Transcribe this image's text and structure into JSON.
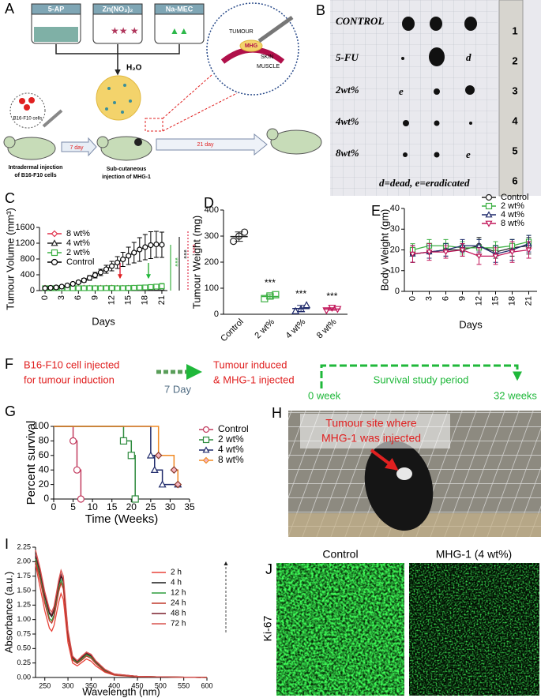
{
  "panel_labels": [
    "A",
    "B",
    "C",
    "D",
    "E",
    "F",
    "G",
    "H",
    "I",
    "J"
  ],
  "schematic": {
    "reagents": [
      "5-AP",
      "Zn(NO₃)₂",
      "Na-MEC"
    ],
    "solvent": "H₂O",
    "inset": [
      "TUMOUR",
      "MHG",
      "SKIN",
      "MUSCLE"
    ],
    "cells": "B16-F10 cells",
    "steps": [
      "7 day",
      "21 day"
    ],
    "captions": [
      [
        "Intradermal injection",
        "of B16-F10 cells"
      ],
      [
        "Sub-cutaneous",
        "injection of MHG-1"
      ]
    ]
  },
  "photo_b": {
    "rows": [
      "CONTROL",
      "5-FU",
      "2wt%",
      "4wt%",
      "8wt%"
    ],
    "letters": [
      "d",
      "e",
      "e"
    ],
    "caption": "d=dead, e=eradicated",
    "ruler_labels": [
      "1",
      "2",
      "3",
      "4",
      "5",
      "6"
    ]
  },
  "timeline": {
    "start": [
      "B16-F10 cell injected",
      "for tumour induction"
    ],
    "gap": "7 Day",
    "treatment": [
      "Tumour induced",
      "& MHG-1 injected"
    ],
    "begin": "0 week",
    "period": "Survival study period",
    "end": "32 weeks"
  },
  "photo_h": {
    "annotation": [
      "Tumour site where",
      "MHG-1 was injected"
    ]
  },
  "microscopy": {
    "titles": [
      "Control",
      "MHG-1 (4 wt%)"
    ],
    "stain": "Ki-67"
  },
  "chart_data": [
    {
      "type": "line",
      "ylabel": "Tumour Volume (mm³)",
      "xlabel": "Days",
      "x": [
        0,
        1,
        2,
        3,
        4,
        5,
        6,
        7,
        8,
        9,
        10,
        11,
        12,
        13,
        14,
        15,
        16,
        17,
        18,
        19,
        20,
        21
      ],
      "xlim": [
        -1,
        22
      ],
      "xticks": [
        0,
        3,
        6,
        9,
        12,
        15,
        18,
        21
      ],
      "ylim": [
        0,
        1600
      ],
      "yticks": [
        0,
        400,
        800,
        1200,
        1600
      ],
      "legend": "upper left",
      "series": [
        {
          "name": "8 wt%",
          "color": "#e0304a",
          "marker": "diamond",
          "values": [
            70,
            70,
            65,
            70,
            75,
            70,
            70,
            72,
            70,
            68,
            70,
            72,
            75,
            70,
            68,
            70,
            72,
            70,
            70,
            72,
            75,
            75
          ],
          "errors": [
            20,
            20,
            20,
            20,
            20,
            20,
            20,
            20,
            20,
            20,
            20,
            20,
            20,
            20,
            20,
            20,
            20,
            20,
            20,
            20,
            25,
            25
          ]
        },
        {
          "name": "4 wt%",
          "color": "#222222",
          "marker": "triangle",
          "values": [
            55,
            55,
            55,
            55,
            55,
            55,
            55,
            55,
            55,
            55,
            55,
            55,
            55,
            55,
            55,
            55,
            55,
            55,
            55,
            55,
            55,
            55
          ],
          "errors": [
            15,
            15,
            15,
            15,
            15,
            15,
            15,
            15,
            15,
            15,
            15,
            15,
            15,
            15,
            15,
            15,
            15,
            15,
            15,
            15,
            15,
            15
          ]
        },
        {
          "name": "2 wt%",
          "color": "#3cb043",
          "marker": "square",
          "values": [
            60,
            60,
            60,
            62,
            60,
            58,
            60,
            60,
            62,
            60,
            60,
            62,
            65,
            60,
            62,
            65,
            70,
            75,
            80,
            90,
            100,
            110
          ],
          "errors": [
            15,
            15,
            15,
            15,
            15,
            15,
            15,
            15,
            15,
            15,
            15,
            15,
            20,
            20,
            20,
            25,
            30,
            35,
            40,
            50,
            60,
            70
          ]
        },
        {
          "name": "Control",
          "color": "#000000",
          "marker": "circle",
          "values": [
            60,
            70,
            80,
            100,
            130,
            170,
            210,
            260,
            320,
            390,
            460,
            540,
            620,
            710,
            790,
            880,
            960,
            1040,
            1100,
            1150,
            1170,
            1160
          ],
          "errors": [
            10,
            10,
            15,
            20,
            25,
            30,
            40,
            50,
            60,
            70,
            80,
            100,
            120,
            150,
            180,
            220,
            260,
            300,
            320,
            340,
            330,
            320
          ]
        }
      ],
      "significance": [
        {
          "label": "***",
          "color": "#3cb043"
        },
        {
          "label": "***",
          "color": "#222222"
        },
        {
          "label": "***",
          "color": "#e0304a"
        }
      ]
    },
    {
      "type": "dot",
      "ylabel": "Tumour Weight (mg)",
      "categories": [
        "Control",
        "2 wt%",
        "4 wt%",
        "8 wt%"
      ],
      "ylim": [
        0,
        400
      ],
      "yticks": [
        0,
        100,
        200,
        300,
        400
      ],
      "values": [
        [
          280,
          300,
          315
        ],
        [
          60,
          70,
          75
        ],
        [
          12,
          20,
          35
        ],
        [
          15,
          25,
          20
        ]
      ],
      "means": [
        298,
        68,
        22,
        20
      ],
      "sd": [
        18,
        8,
        12,
        5
      ],
      "colors": [
        "#222222",
        "#3cb043",
        "#1f2a6b",
        "#c2185b"
      ],
      "markers": [
        "circle",
        "square",
        "triangle",
        "triangle-down"
      ],
      "significance": [
        "***",
        "***",
        "***"
      ]
    },
    {
      "type": "line",
      "ylabel": "Body Weight (gm)",
      "xlabel": "Days",
      "x": [
        0,
        3,
        6,
        9,
        12,
        15,
        18,
        21
      ],
      "xlim": [
        -1.5,
        22.5
      ],
      "xticks": [
        0,
        3,
        6,
        9,
        12,
        15,
        18,
        21
      ],
      "ylim": [
        0,
        40
      ],
      "yticks": [
        0,
        10,
        20,
        30,
        40
      ],
      "legend": "upper right",
      "series": [
        {
          "name": "Control",
          "color": "#222222",
          "marker": "circle",
          "values": [
            18,
            19,
            20,
            20,
            22,
            19,
            21,
            22
          ],
          "errors": [
            4,
            3,
            3,
            3,
            4,
            3,
            4,
            4
          ]
        },
        {
          "name": "2 wt%",
          "color": "#3cb043",
          "marker": "square",
          "values": [
            20,
            22,
            22,
            21,
            21,
            21,
            22,
            24
          ],
          "errors": [
            3,
            3,
            3,
            3,
            4,
            3,
            3,
            3
          ]
        },
        {
          "name": "4 wt%",
          "color": "#1f2a6b",
          "marker": "triangle",
          "values": [
            18,
            19,
            20,
            22,
            22,
            18,
            20,
            23
          ],
          "errors": [
            4,
            3,
            3,
            3,
            3,
            4,
            5,
            4
          ]
        },
        {
          "name": "8 wt%",
          "color": "#c2185b",
          "marker": "triangle-down",
          "values": [
            18,
            19,
            19,
            20,
            17,
            17,
            19,
            20
          ],
          "errors": [
            4,
            4,
            3,
            3,
            4,
            4,
            5,
            4
          ]
        }
      ]
    },
    {
      "type": "step",
      "ylabel": "Percent survival",
      "xlabel": "Time (Weeks)",
      "xlim": [
        0,
        35
      ],
      "xticks": [
        0,
        5,
        10,
        15,
        20,
        25,
        30,
        35
      ],
      "ylim": [
        0,
        100
      ],
      "yticks": [
        0,
        20,
        40,
        60,
        80,
        100
      ],
      "legend": "right",
      "series": [
        {
          "name": "Control",
          "color": "#c23b5e",
          "marker": "circle",
          "x": [
            0,
            5,
            6,
            7
          ],
          "values": [
            100,
            80,
            40,
            0
          ]
        },
        {
          "name": "2 wt%",
          "color": "#2e8b3e",
          "marker": "square",
          "x": [
            0,
            18,
            20,
            21
          ],
          "values": [
            100,
            80,
            60,
            0
          ]
        },
        {
          "name": "4 wt%",
          "color": "#1f2a6b",
          "marker": "triangle",
          "x": [
            0,
            25,
            26,
            28,
            32
          ],
          "values": [
            100,
            60,
            40,
            20,
            20
          ]
        },
        {
          "name": "8 wt%",
          "color": "#f08a24",
          "marker": "diamond",
          "marker_fill": "#f4b6c2",
          "x": [
            0,
            27,
            31,
            32
          ],
          "values": [
            100,
            60,
            40,
            20
          ]
        }
      ]
    },
    {
      "type": "line",
      "ylabel": "Absorbance (a.u.)",
      "xlabel": "Wavelength (nm)",
      "x": [
        230,
        240,
        250,
        260,
        265,
        270,
        280,
        285,
        290,
        300,
        310,
        320,
        330,
        340,
        350,
        360,
        380,
        400,
        450,
        500,
        600
      ],
      "xlim": [
        230,
        600
      ],
      "xticks": [
        250,
        300,
        350,
        400,
        450,
        500,
        550,
        600
      ],
      "ylim": [
        0,
        2.25
      ],
      "yticks": [
        {
          "value": 0,
          "label": "0.00"
        },
        {
          "value": 0.25,
          "label": "0.25"
        },
        {
          "value": 0.5,
          "label": "0.50"
        },
        {
          "value": 0.75,
          "label": "0.75"
        },
        {
          "value": 1,
          "label": "1.00"
        },
        {
          "value": 1.25,
          "label": "1.25"
        },
        {
          "value": 1.5,
          "label": "1.50"
        },
        {
          "value": 1.75,
          "label": "1.75"
        },
        {
          "value": 2,
          "label": "2.00"
        },
        {
          "value": 2.25,
          "label": "2.25"
        }
      ],
      "legend": "upper right",
      "series": [
        {
          "name": "2 h",
          "color": "#e8443a",
          "marker": "none",
          "values": [
            1.95,
            1.55,
            1.15,
            0.85,
            0.8,
            0.9,
            1.3,
            1.45,
            1.35,
            0.6,
            0.25,
            0.2,
            0.26,
            0.32,
            0.28,
            0.2,
            0.09,
            0.04,
            0.01,
            0.01,
            0
          ]
        },
        {
          "name": "4 h",
          "color": "#1a1a1a",
          "marker": "none",
          "values": [
            2.1,
            1.8,
            1.4,
            1.1,
            1.05,
            1.15,
            1.6,
            1.75,
            1.65,
            0.78,
            0.34,
            0.27,
            0.34,
            0.41,
            0.37,
            0.27,
            0.12,
            0.05,
            0.02,
            0.01,
            0
          ]
        },
        {
          "name": "12 h",
          "color": "#2e9e3e",
          "marker": "none",
          "values": [
            2.05,
            1.72,
            1.32,
            1.02,
            0.98,
            1.08,
            1.52,
            1.68,
            1.58,
            0.74,
            0.32,
            0.25,
            0.32,
            0.39,
            0.35,
            0.25,
            0.11,
            0.05,
            0.02,
            0.01,
            0
          ]
        },
        {
          "name": "24 h",
          "color": "#c0392b",
          "marker": "none",
          "values": [
            2,
            1.68,
            1.28,
            0.98,
            0.94,
            1.04,
            1.48,
            1.63,
            1.53,
            0.7,
            0.3,
            0.24,
            0.3,
            0.37,
            0.33,
            0.24,
            0.1,
            0.05,
            0.02,
            0.01,
            0
          ]
        },
        {
          "name": "48 h",
          "color": "#7a1f2b",
          "marker": "none",
          "values": [
            2.12,
            1.83,
            1.43,
            1.13,
            1.08,
            1.18,
            1.63,
            1.78,
            1.68,
            0.79,
            0.35,
            0.28,
            0.35,
            0.42,
            0.38,
            0.28,
            0.13,
            0.06,
            0.02,
            0.01,
            0
          ]
        },
        {
          "name": "72 h",
          "color": "#d9534f",
          "marker": "none",
          "values": [
            2.2,
            1.88,
            1.48,
            1.18,
            1.13,
            1.23,
            1.68,
            1.85,
            1.75,
            0.82,
            0.37,
            0.29,
            0.37,
            0.44,
            0.4,
            0.29,
            0.14,
            0.06,
            0.02,
            0.01,
            0
          ]
        }
      ]
    }
  ]
}
